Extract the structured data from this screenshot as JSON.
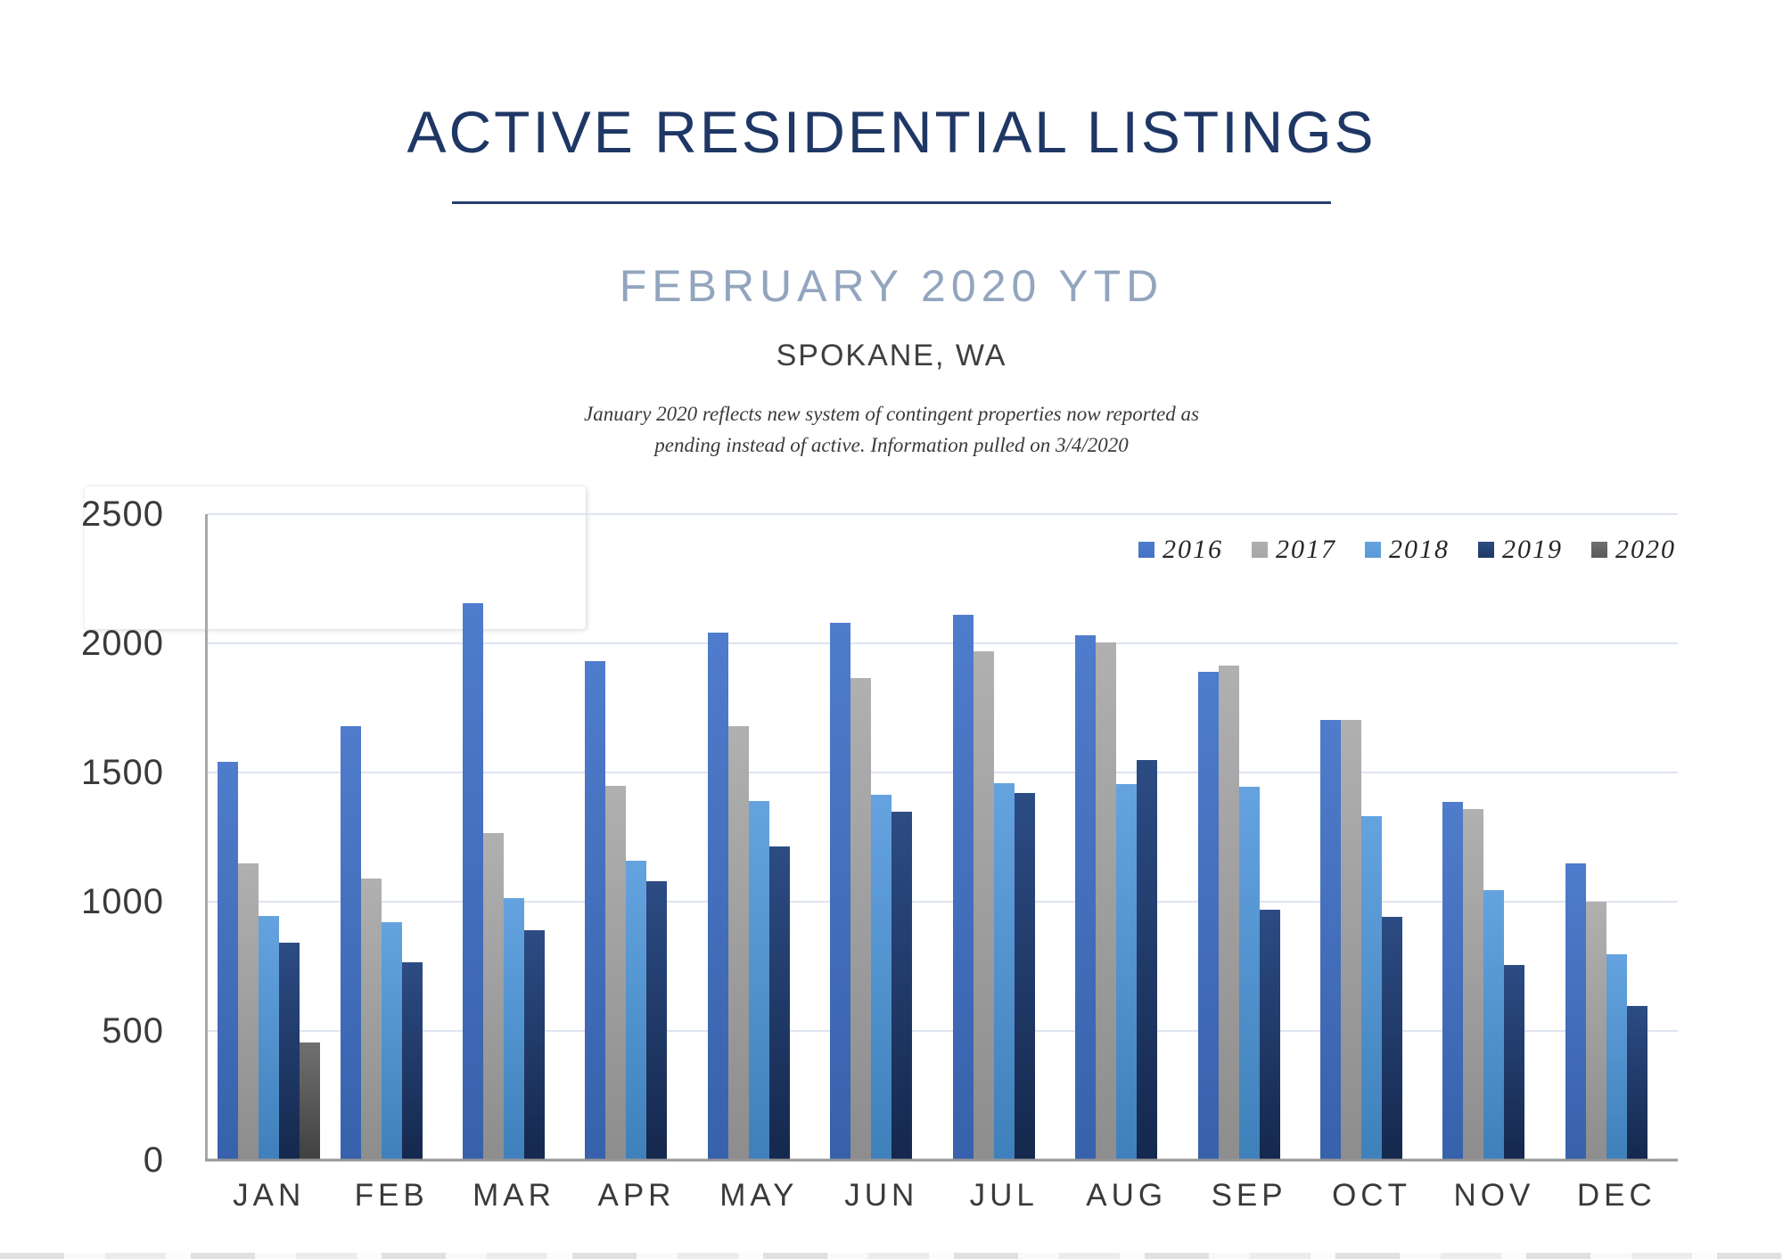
{
  "header": {
    "title": "ACTIVE RESIDENTIAL LISTINGS",
    "subtitle": "FEBRUARY 2020 YTD",
    "location": "SPOKANE, WA",
    "note_line1": "January 2020 reflects new system of contingent properties now reported as",
    "note_line2": "pending instead of active.  Information pulled on 3/4/2020"
  },
  "colors": {
    "title_navy": "#1E3765",
    "subtitle_steel": "#93A5BE",
    "gridline": "#DEE4F1",
    "axis_line": "#979797"
  },
  "chart_data": {
    "type": "bar",
    "title": "Active Residential Listings — February 2020 YTD, Spokane, WA",
    "xlabel": "",
    "ylabel": "",
    "ylim": [
      0,
      2500
    ],
    "yticks": [
      0,
      500,
      1000,
      1500,
      2000,
      2500
    ],
    "grid": true,
    "legend_position": "top-right",
    "categories": [
      "JAN",
      "FEB",
      "MAR",
      "APR",
      "MAY",
      "JUN",
      "JUL",
      "AUG",
      "SEP",
      "OCT",
      "NOV",
      "DEC"
    ],
    "series": [
      {
        "name": "2016",
        "legend_color": "#4472C4",
        "color_top": "#4F7CCC",
        "color_bottom": "#3861AB",
        "values": [
          1540,
          1680,
          2155,
          1930,
          2040,
          2080,
          2110,
          2030,
          1890,
          1705,
          1385,
          1150
        ]
      },
      {
        "name": "2017",
        "legend_color": "#A6A6A6",
        "color_top": "#B0B0B0",
        "color_bottom": "#8D8D8D",
        "values": [
          1150,
          1090,
          1265,
          1450,
          1680,
          1865,
          1970,
          2005,
          1915,
          1705,
          1360,
          1000
        ]
      },
      {
        "name": "2018",
        "legend_color": "#5B9BD5",
        "color_top": "#64A3DF",
        "color_bottom": "#3F80BB",
        "values": [
          945,
          920,
          1015,
          1160,
          1390,
          1415,
          1460,
          1455,
          1445,
          1330,
          1045,
          795
        ]
      },
      {
        "name": "2019",
        "legend_color": "#1F3864",
        "color_top": "#2C4C84",
        "color_bottom": "#15284D",
        "values": [
          840,
          765,
          890,
          1080,
          1215,
          1350,
          1420,
          1550,
          970,
          940,
          755,
          595
        ]
      },
      {
        "name": "2020",
        "legend_color": "#595959",
        "color_top": "#707070",
        "color_bottom": "#404040",
        "values": [
          455,
          null,
          null,
          null,
          null,
          null,
          null,
          null,
          null,
          null,
          null,
          null
        ]
      }
    ]
  }
}
